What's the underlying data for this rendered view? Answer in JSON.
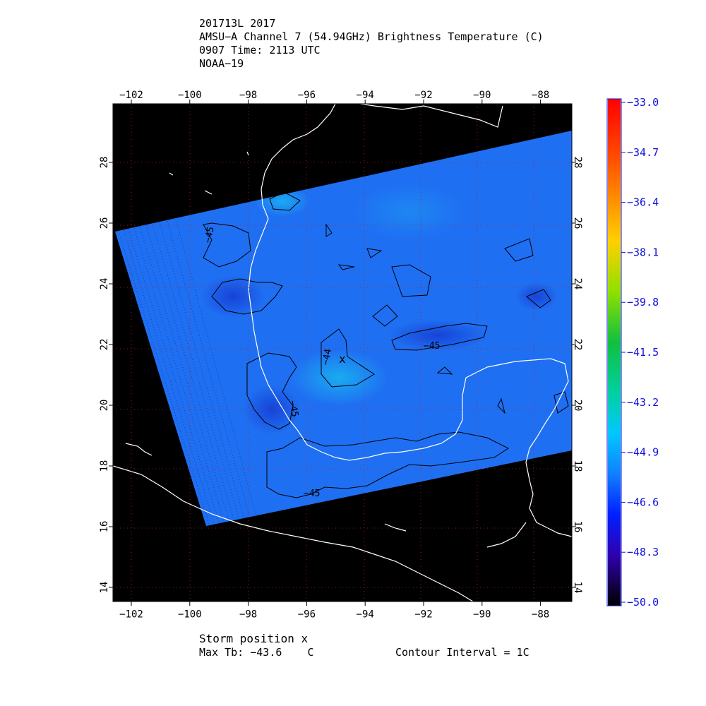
{
  "title": {
    "line1": "201713L 2017",
    "line2": "AMSU−A Channel 7 (54.94GHz) Brightness Temperature (C)",
    "line3": "0907 Time: 2113 UTC",
    "line4": "NOAA−19"
  },
  "footer": {
    "storm_position": "Storm position x",
    "max_tb": "Max Tb: −43.6    C",
    "contour_interval": "Contour Interval = 1C"
  },
  "map": {
    "lon_ticks": [
      "−102",
      "−100",
      "−98",
      "−96",
      "−94",
      "−92",
      "−90",
      "−88"
    ],
    "lon_values": [
      -102,
      -100,
      -98,
      -96,
      -94,
      -92,
      -90,
      -88
    ],
    "lat_ticks": [
      "14",
      "16",
      "18",
      "20",
      "22",
      "24",
      "26",
      "28"
    ],
    "lat_values": [
      14,
      16,
      18,
      20,
      22,
      24,
      26,
      28
    ],
    "contour_labels": [
      "−45",
      "−44",
      "−45",
      "−45",
      "−45"
    ],
    "storm_marker": "x"
  },
  "colorbar": {
    "labels": [
      "−33.0",
      "−34.7",
      "−36.4",
      "−38.1",
      "−39.8",
      "−41.5",
      "−43.2",
      "−44.9",
      "−46.6",
      "−48.3",
      "−50.0"
    ],
    "min": -50.0,
    "max": -33.0
  },
  "colors": {
    "background": "#000000",
    "swath": "#1f6ff2",
    "coast": "#ffffff",
    "grid": "#c02020",
    "label": "#1010dd"
  }
}
